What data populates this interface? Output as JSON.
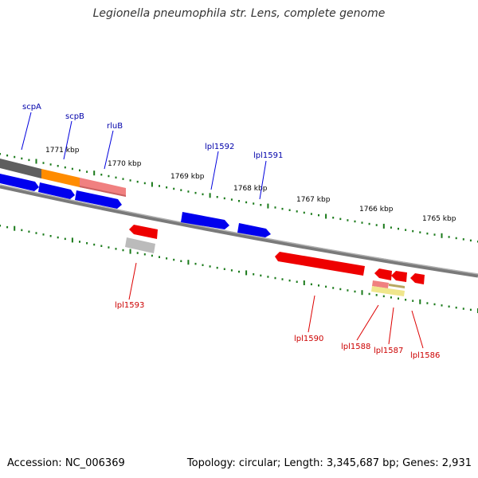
{
  "title": "Legionella pneumophila str. Lens, complete genome",
  "footer": {
    "accession": "Accession: NC_006369",
    "summary": "Topology: circular; Length: 3,345,687 bp; Genes: 2,931"
  },
  "colors": {
    "forward_gene": "#0000ee",
    "reverse_gene": "#ee0000",
    "forward_label": "#0000aa",
    "reverse_label": "#cc0000",
    "tick": "#1a7a1a",
    "backbone": "#888888",
    "orange_segment": "#ff8c00",
    "pink_segment": "#f08080",
    "grey_segment": "#666666",
    "light_grey_box": "#bbbbbb",
    "yellow_box": "#f0e68c"
  },
  "scale_labels": [
    "1771 kbp",
    "1770 kbp",
    "1769 kbp",
    "1768 kbp",
    "1767 kbp",
    "1766 kbp",
    "1765 kbp"
  ],
  "genes": {
    "forward": [
      "scpA",
      "scpB",
      "rluB",
      "lpl1592",
      "lpl1591"
    ],
    "reverse": [
      "lpl1593",
      "lpl1590",
      "lpl1588",
      "lpl1587",
      "lpl1586"
    ]
  }
}
